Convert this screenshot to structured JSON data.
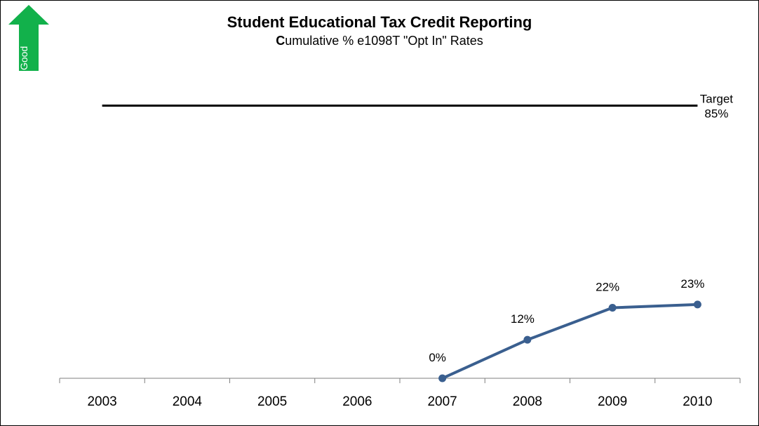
{
  "badge": {
    "label": "Good",
    "color": "#12b14b"
  },
  "chart_data": {
    "type": "line",
    "title": "Student Educational Tax Credit Reporting",
    "subtitle_initial": "C",
    "subtitle_rest": "umulative % e1098T \"Opt In\" Rates",
    "categories": [
      "2003",
      "2004",
      "2005",
      "2006",
      "2007",
      "2008",
      "2009",
      "2010"
    ],
    "series": [
      {
        "values": [
          null,
          null,
          null,
          null,
          0,
          12,
          22,
          23
        ],
        "labels": [
          "",
          "",
          "",
          "",
          "0%",
          "12%",
          "22%",
          "23%"
        ],
        "color": "#3a5f8f"
      }
    ],
    "target": {
      "value": 85,
      "label_line1": "Target",
      "label_line2": "85%",
      "color": "#000000"
    },
    "ylim": [
      0,
      100
    ],
    "grid": false,
    "legend": "none"
  }
}
